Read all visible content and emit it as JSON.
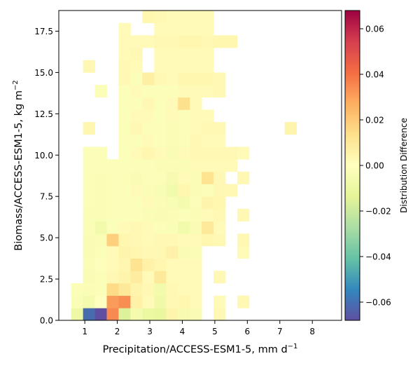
{
  "chart_data": {
    "type": "heatmap",
    "xlabel": "Precipitation/ACCESS-ESM1-5,  mm d",
    "xlabel_sup": "−1",
    "ylabel": "Biomass/ACCESS-ESM1-5,  kg m",
    "ylabel_sup": "−2",
    "colorbar_label": "Distribution Difference",
    "xlim": [
      0.2,
      8.9
    ],
    "ylim": [
      0,
      18.75
    ],
    "x_ticks": [
      1,
      2,
      3,
      4,
      5,
      6,
      7,
      8
    ],
    "x_tick_labels": [
      "1",
      "2",
      "3",
      "4",
      "5",
      "6",
      "7",
      "8"
    ],
    "y_ticks": [
      0,
      2.5,
      5,
      7.5,
      10,
      12.5,
      15,
      17.5
    ],
    "y_tick_labels": [
      "0.0",
      "2.5",
      "5.0",
      "7.5",
      "10.0",
      "12.5",
      "15.0",
      "17.5"
    ],
    "colorbar_range": [
      -0.068,
      0.068
    ],
    "colorbar_ticks": [
      -0.06,
      -0.04,
      -0.02,
      0,
      0.02,
      0.04,
      0.06
    ],
    "colorbar_tick_labels": [
      "−0.06",
      "−0.04",
      "−0.02",
      "0.00",
      "0.02",
      "0.04",
      "0.06"
    ],
    "colormap": "Spectral_r",
    "cell_width": 0.365,
    "cell_height": 0.75,
    "x_start": 0.58,
    "column_centers": [
      0.763,
      1.128,
      1.493,
      1.858,
      2.223,
      2.588,
      2.953,
      3.318,
      3.683,
      4.048,
      4.413,
      4.778,
      5.143,
      5.508,
      5.873,
      6.238,
      6.603
    ],
    "rows": [
      {
        "y": 0.375,
        "cells": [
          [
            0.763,
            -0.009
          ],
          [
            1.128,
            -0.061
          ],
          [
            1.493,
            -0.068
          ],
          [
            1.858,
            0.035
          ],
          [
            2.223,
            -0.016
          ],
          [
            2.588,
            -0.006
          ],
          [
            2.953,
            -0.01
          ],
          [
            3.318,
            -0.011
          ],
          [
            3.683,
            0.005
          ],
          [
            4.048,
            -0.005
          ],
          [
            4.413,
            -0.004
          ],
          [
            5.143,
            0.003
          ]
        ]
      },
      {
        "y": 1.125,
        "cells": [
          [
            0.763,
            -0.003
          ],
          [
            1.128,
            -0.006
          ],
          [
            1.493,
            0.0
          ],
          [
            1.858,
            0.031
          ],
          [
            2.223,
            0.034
          ],
          [
            2.588,
            0.006
          ],
          [
            2.953,
            0.002
          ],
          [
            3.318,
            -0.008
          ],
          [
            3.683,
            0.003
          ],
          [
            4.048,
            0.004
          ],
          [
            4.413,
            0.002
          ],
          [
            5.143,
            0.002
          ],
          [
            5.873,
            0.003
          ]
        ]
      },
      {
        "y": 1.875,
        "cells": [
          [
            0.763,
            -0.002
          ],
          [
            1.128,
            -0.003
          ],
          [
            1.493,
            -0.002
          ],
          [
            1.858,
            0.015
          ],
          [
            2.223,
            0.01
          ],
          [
            2.588,
            0.005
          ],
          [
            2.953,
            0.003
          ],
          [
            3.318,
            -0.007
          ],
          [
            3.683,
            0.003
          ],
          [
            4.048,
            0.002
          ],
          [
            4.413,
            0.002
          ]
        ]
      },
      {
        "y": 2.625,
        "cells": [
          [
            1.128,
            -0.004
          ],
          [
            1.493,
            -0.002
          ],
          [
            1.858,
            0.003
          ],
          [
            2.223,
            0.005
          ],
          [
            2.588,
            0.008
          ],
          [
            2.953,
            0.002
          ],
          [
            3.318,
            0.01
          ],
          [
            3.683,
            0.002
          ],
          [
            4.048,
            0.002
          ],
          [
            4.413,
            0.002
          ],
          [
            5.143,
            0.003
          ]
        ]
      },
      {
        "y": 3.375,
        "cells": [
          [
            1.128,
            -0.003
          ],
          [
            1.493,
            -0.001
          ],
          [
            1.858,
            0.002
          ],
          [
            2.223,
            0.004
          ],
          [
            2.588,
            0.012
          ],
          [
            2.953,
            0.006
          ],
          [
            3.318,
            0.004
          ],
          [
            3.683,
            0.002
          ],
          [
            4.048,
            0.002
          ],
          [
            4.413,
            0.002
          ]
        ]
      },
      {
        "y": 4.125,
        "cells": [
          [
            1.128,
            -0.004
          ],
          [
            1.493,
            -0.002
          ],
          [
            1.858,
            0.002
          ],
          [
            2.223,
            0.005
          ],
          [
            2.588,
            0.004
          ],
          [
            2.953,
            0.003
          ],
          [
            3.318,
            0.003
          ],
          [
            3.683,
            0.006
          ],
          [
            4.048,
            -0.004
          ],
          [
            4.413,
            -0.003
          ],
          [
            5.873,
            0.002
          ]
        ]
      },
      {
        "y": 4.875,
        "cells": [
          [
            1.128,
            -0.004
          ],
          [
            1.493,
            -0.003
          ],
          [
            1.858,
            0.018
          ],
          [
            2.223,
            0.004
          ],
          [
            2.588,
            0.003
          ],
          [
            2.953,
            0.002
          ],
          [
            3.318,
            0.003
          ],
          [
            3.683,
            0.003
          ],
          [
            4.048,
            0.002
          ],
          [
            4.413,
            0.002
          ],
          [
            4.778,
            0.004
          ],
          [
            5.143,
            0.003
          ],
          [
            5.873,
            0.003
          ]
        ]
      },
      {
        "y": 5.625,
        "cells": [
          [
            1.128,
            -0.003
          ],
          [
            1.493,
            -0.007
          ],
          [
            1.858,
            -0.002
          ],
          [
            2.223,
            0.002
          ],
          [
            2.588,
            0.003
          ],
          [
            2.953,
            0.002
          ],
          [
            3.318,
            -0.002
          ],
          [
            3.683,
            -0.003
          ],
          [
            4.048,
            -0.007
          ],
          [
            4.413,
            -0.004
          ],
          [
            4.778,
            0.01
          ],
          [
            5.143,
            0.002
          ]
        ]
      },
      {
        "y": 6.375,
        "cells": [
          [
            1.128,
            -0.003
          ],
          [
            1.493,
            -0.003
          ],
          [
            1.858,
            -0.002
          ],
          [
            2.223,
            -0.002
          ],
          [
            2.588,
            -0.002
          ],
          [
            2.953,
            -0.003
          ],
          [
            3.318,
            -0.004
          ],
          [
            3.683,
            -0.003
          ],
          [
            4.048,
            -0.002
          ],
          [
            4.413,
            -0.003
          ],
          [
            4.778,
            0.002
          ],
          [
            5.143,
            0.003
          ],
          [
            5.873,
            0.003
          ]
        ]
      },
      {
        "y": 7.125,
        "cells": [
          [
            1.128,
            -0.002
          ],
          [
            1.493,
            -0.003
          ],
          [
            1.858,
            -0.002
          ],
          [
            2.223,
            -0.002
          ],
          [
            2.588,
            -0.002
          ],
          [
            2.953,
            0.002
          ],
          [
            3.318,
            -0.003
          ],
          [
            3.683,
            -0.004
          ],
          [
            4.048,
            -0.006
          ],
          [
            4.413,
            -0.002
          ],
          [
            4.778,
            0.005
          ],
          [
            5.143,
            0.004
          ]
        ]
      },
      {
        "y": 7.875,
        "cells": [
          [
            1.128,
            -0.002
          ],
          [
            1.493,
            -0.003
          ],
          [
            1.858,
            -0.002
          ],
          [
            2.223,
            -0.002
          ],
          [
            2.588,
            0.002
          ],
          [
            2.953,
            -0.003
          ],
          [
            3.318,
            -0.004
          ],
          [
            3.683,
            -0.007
          ],
          [
            4.048,
            0.004
          ],
          [
            4.413,
            -0.003
          ],
          [
            4.778,
            -0.002
          ],
          [
            5.143,
            0.003
          ],
          [
            5.508,
            0.003
          ]
        ]
      },
      {
        "y": 8.625,
        "cells": [
          [
            1.128,
            -0.002
          ],
          [
            1.493,
            -0.003
          ],
          [
            1.858,
            -0.002
          ],
          [
            2.223,
            -0.002
          ],
          [
            2.588,
            -0.004
          ],
          [
            2.953,
            -0.002
          ],
          [
            3.318,
            -0.002
          ],
          [
            3.683,
            -0.005
          ],
          [
            4.048,
            0.002
          ],
          [
            4.413,
            -0.003
          ],
          [
            4.778,
            0.012
          ],
          [
            5.143,
            0.003
          ],
          [
            5.873,
            0.003
          ]
        ]
      },
      {
        "y": 9.375,
        "cells": [
          [
            1.128,
            -0.002
          ],
          [
            1.493,
            -0.002
          ],
          [
            1.858,
            -0.002
          ],
          [
            2.223,
            -0.002
          ],
          [
            2.588,
            -0.002
          ],
          [
            2.953,
            -0.002
          ],
          [
            3.318,
            -0.003
          ],
          [
            3.683,
            -0.003
          ],
          [
            4.048,
            -0.003
          ],
          [
            4.413,
            0.002
          ],
          [
            4.778,
            0.002
          ],
          [
            5.143,
            0.002
          ],
          [
            5.508,
            0.002
          ]
        ]
      },
      {
        "y": 10.125,
        "cells": [
          [
            1.128,
            -0.002
          ],
          [
            1.493,
            -0.002
          ],
          [
            2.223,
            -0.002
          ],
          [
            2.588,
            0.002
          ],
          [
            2.953,
            0.004
          ],
          [
            3.318,
            0.002
          ],
          [
            3.683,
            -0.004
          ],
          [
            4.048,
            0.002
          ],
          [
            4.413,
            0.003
          ],
          [
            4.778,
            0.003
          ],
          [
            5.143,
            0.003
          ],
          [
            5.508,
            0.003
          ],
          [
            5.873,
            0.002
          ]
        ]
      },
      {
        "y": 10.875,
        "cells": [
          [
            2.223,
            -0.002
          ],
          [
            2.588,
            -0.002
          ],
          [
            2.953,
            0.002
          ],
          [
            3.318,
            -0.002
          ],
          [
            3.683,
            -0.003
          ],
          [
            4.048,
            -0.002
          ],
          [
            4.413,
            0.003
          ],
          [
            4.778,
            0.002
          ],
          [
            5.143,
            0.002
          ]
        ]
      },
      {
        "y": 11.625,
        "cells": [
          [
            1.128,
            0.004
          ],
          [
            2.223,
            -0.002
          ],
          [
            2.588,
            0.003
          ],
          [
            2.953,
            -0.002
          ],
          [
            3.318,
            -0.002
          ],
          [
            3.683,
            -0.003
          ],
          [
            4.048,
            -0.002
          ],
          [
            4.413,
            0.002
          ],
          [
            4.778,
            0.003
          ],
          [
            5.143,
            0.003
          ],
          [
            7.333,
            0.005
          ]
        ]
      },
      {
        "y": 12.375,
        "cells": [
          [
            2.223,
            -0.002
          ],
          [
            2.588,
            0.002
          ],
          [
            2.953,
            0.002
          ],
          [
            3.318,
            -0.002
          ],
          [
            3.683,
            0.002
          ],
          [
            4.048,
            -0.002
          ],
          [
            4.413,
            0.002
          ],
          [
            4.778,
            0.002
          ]
        ]
      },
      {
        "y": 13.125,
        "cells": [
          [
            2.223,
            -0.002
          ],
          [
            2.588,
            -0.002
          ],
          [
            2.953,
            0.003
          ],
          [
            3.318,
            -0.002
          ],
          [
            3.683,
            0.002
          ],
          [
            4.048,
            0.013
          ],
          [
            4.413,
            0.002
          ]
        ]
      },
      {
        "y": 13.875,
        "cells": [
          [
            1.493,
            -0.002
          ],
          [
            2.223,
            -0.002
          ],
          [
            2.588,
            0.002
          ],
          [
            2.953,
            -0.002
          ],
          [
            3.318,
            -0.002
          ],
          [
            3.683,
            -0.002
          ],
          [
            4.048,
            0.002
          ],
          [
            4.413,
            0.002
          ],
          [
            4.778,
            0.002
          ],
          [
            5.143,
            0.003
          ]
        ]
      },
      {
        "y": 14.625,
        "cells": [
          [
            2.223,
            0.003
          ],
          [
            2.588,
            -0.002
          ],
          [
            2.953,
            0.007
          ],
          [
            3.318,
            0.003
          ],
          [
            3.683,
            0.002
          ],
          [
            4.048,
            0.004
          ],
          [
            4.413,
            0.004
          ],
          [
            4.778,
            0.004
          ],
          [
            5.143,
            0.003
          ]
        ]
      },
      {
        "y": 15.375,
        "cells": [
          [
            1.128,
            0.003
          ],
          [
            2.223,
            0.003
          ],
          [
            2.588,
            0.002
          ],
          [
            3.318,
            0.002
          ],
          [
            3.683,
            0.002
          ],
          [
            4.048,
            0.002
          ],
          [
            4.413,
            0.002
          ],
          [
            4.778,
            0.002
          ]
        ]
      },
      {
        "y": 16.125,
        "cells": [
          [
            2.223,
            0.002
          ],
          [
            2.588,
            0.003
          ],
          [
            3.318,
            0.002
          ],
          [
            3.683,
            0.002
          ],
          [
            4.048,
            0.002
          ],
          [
            4.413,
            0.002
          ],
          [
            4.778,
            0.002
          ]
        ]
      },
      {
        "y": 16.875,
        "cells": [
          [
            2.223,
            0.002
          ],
          [
            2.588,
            0.002
          ],
          [
            2.953,
            0.002
          ],
          [
            3.318,
            0.003
          ],
          [
            3.683,
            0.003
          ],
          [
            4.048,
            0.004
          ],
          [
            4.413,
            0.004
          ],
          [
            4.778,
            0.003
          ],
          [
            5.143,
            0.004
          ],
          [
            5.508,
            0.004
          ]
        ]
      },
      {
        "y": 17.625,
        "cells": [
          [
            2.223,
            0.002
          ],
          [
            3.318,
            0.002
          ],
          [
            3.683,
            0.002
          ],
          [
            4.048,
            0.002
          ],
          [
            4.413,
            0.002
          ],
          [
            4.778,
            0.002
          ]
        ]
      },
      {
        "y": 18.375,
        "cells": [
          [
            2.953,
            0.004
          ],
          [
            3.318,
            0.003
          ],
          [
            3.683,
            0.002
          ],
          [
            4.048,
            0.002
          ],
          [
            4.413,
            0.002
          ],
          [
            4.778,
            0.002
          ]
        ]
      }
    ]
  }
}
